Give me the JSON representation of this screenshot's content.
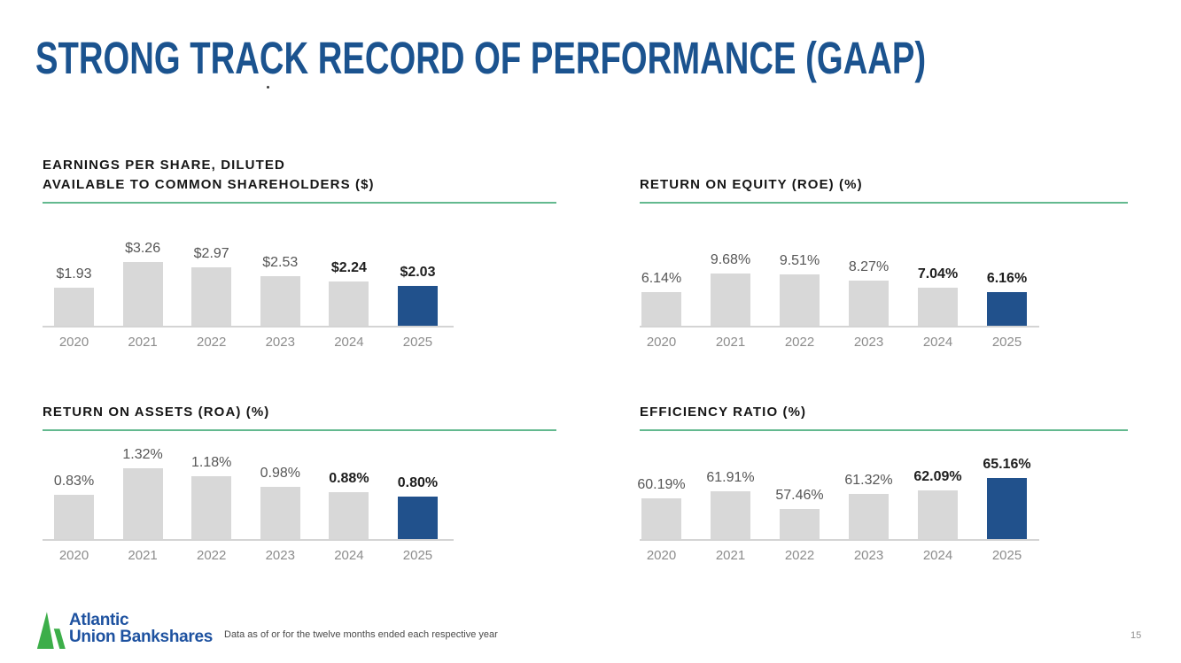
{
  "slide": {
    "title": "STRONG TRACK RECORD OF PERFORMANCE (GAAP)",
    "footnote": "Data as of or for the twelve months ended each respective year",
    "page_number": "15",
    "logo": {
      "line1": "Atlantic",
      "line2": "Union Bankshares"
    }
  },
  "colors": {
    "title_blue": "#1B538F",
    "bar_gray": "#D8D8D8",
    "bar_blue": "#21518C",
    "accent_green": "#63B98F",
    "axis_gray": "#D4D4D4",
    "logo_green": "#3CAE49",
    "logo_blue": "#1E52A0"
  },
  "chart_data": [
    {
      "type": "bar",
      "title": "EARNINGS PER SHARE, DILUTED\nAVAILABLE TO COMMON SHAREHOLDERS ($)",
      "categories": [
        "2020",
        "2021",
        "2022",
        "2023",
        "2024",
        "2025"
      ],
      "values": [
        1.93,
        3.26,
        2.97,
        2.53,
        2.24,
        2.03
      ],
      "labels": [
        "$1.93",
        "$3.26",
        "$2.97",
        "$2.53",
        "$2.24",
        "$2.03"
      ],
      "xlabel": "",
      "ylabel": "",
      "ylim": [
        0,
        4.5
      ],
      "grid": false,
      "legend": "none",
      "bold_from_index": 4,
      "highlight_index": 5
    },
    {
      "type": "bar",
      "title": "RETURN ON EQUITY (ROE) (%)",
      "categories": [
        "2020",
        "2021",
        "2022",
        "2023",
        "2024",
        "2025"
      ],
      "values": [
        6.14,
        9.68,
        9.51,
        8.27,
        7.04,
        6.16
      ],
      "labels": [
        "6.14%",
        "9.68%",
        "9.51%",
        "8.27%",
        "7.04%",
        "6.16%"
      ],
      "xlabel": "",
      "ylabel": "",
      "ylim": [
        0,
        16.3
      ],
      "grid": false,
      "legend": "none",
      "bold_from_index": 4,
      "highlight_index": 5
    },
    {
      "type": "bar",
      "title": "RETURN ON ASSETS (ROA) (%)",
      "categories": [
        "2020",
        "2021",
        "2022",
        "2023",
        "2024",
        "2025"
      ],
      "values": [
        0.83,
        1.32,
        1.18,
        0.98,
        0.88,
        0.8
      ],
      "labels": [
        "0.83%",
        "1.32%",
        "1.18%",
        "0.98%",
        "0.88%",
        "0.80%"
      ],
      "xlabel": "",
      "ylabel": "",
      "ylim": [
        0,
        1.65
      ],
      "grid": false,
      "legend": "none",
      "bold_from_index": 4,
      "highlight_index": 5
    },
    {
      "type": "bar",
      "title": "EFFICIENCY RATIO (%)",
      "categories": [
        "2020",
        "2021",
        "2022",
        "2023",
        "2024",
        "2025"
      ],
      "values": [
        60.19,
        61.91,
        57.46,
        61.32,
        62.09,
        65.16
      ],
      "labels": [
        "60.19%",
        "61.91%",
        "57.46%",
        "61.32%",
        "62.09%",
        "65.16%"
      ],
      "xlabel": "",
      "ylabel": "",
      "ylim": [
        50,
        72
      ],
      "grid": false,
      "legend": "none",
      "bold_from_index": 4,
      "highlight_index": 5
    }
  ]
}
